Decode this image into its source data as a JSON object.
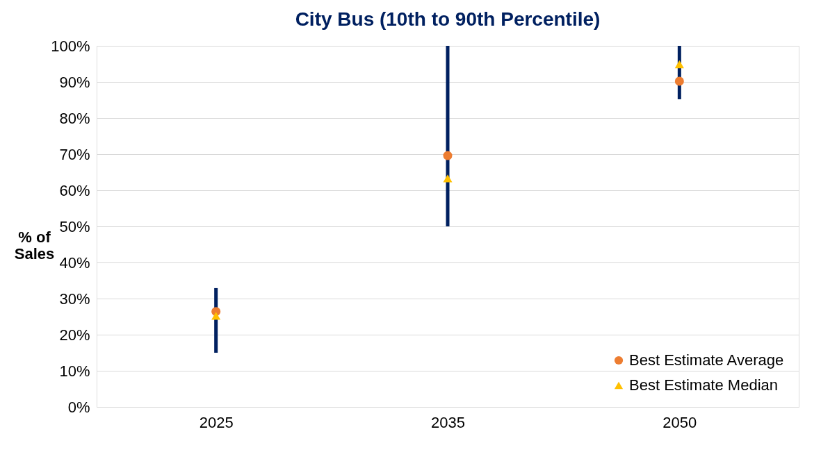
{
  "chart_data": {
    "type": "scatter",
    "title": "City Bus (10th to 90th Percentile)",
    "ylabel": "% of Sales",
    "categories": [
      "2025",
      "2035",
      "2050"
    ],
    "series": [
      {
        "type": "bar",
        "color": "#002060",
        "base": [
          15,
          50,
          85.2
        ],
        "values": [
          17.9,
          50,
          14.8
        ]
      },
      {
        "name": "Best Estimate Average",
        "marker": "circle",
        "color": "#ed7d31",
        "values": [
          26.4,
          69.6,
          90.2
        ]
      },
      {
        "name": "Best Estimate Median",
        "marker": "triangle",
        "color": "#ffc000",
        "values": [
          25.2,
          63.3,
          94.9
        ]
      }
    ],
    "ylim": [
      0,
      100
    ],
    "yticks": [
      {
        "value": 0,
        "label": "0%"
      },
      {
        "value": 10,
        "label": "10%"
      },
      {
        "value": 20,
        "label": "20%"
      },
      {
        "value": 30,
        "label": "30%"
      },
      {
        "value": 40,
        "label": "40%"
      },
      {
        "value": 50,
        "label": "50%"
      },
      {
        "value": 60,
        "label": "60%"
      },
      {
        "value": 70,
        "label": "70%"
      },
      {
        "value": 80,
        "label": "80%"
      },
      {
        "value": 90,
        "label": "90%"
      },
      {
        "value": 100,
        "label": "100%"
      }
    ],
    "grid": "y",
    "legend": "bottom right"
  }
}
